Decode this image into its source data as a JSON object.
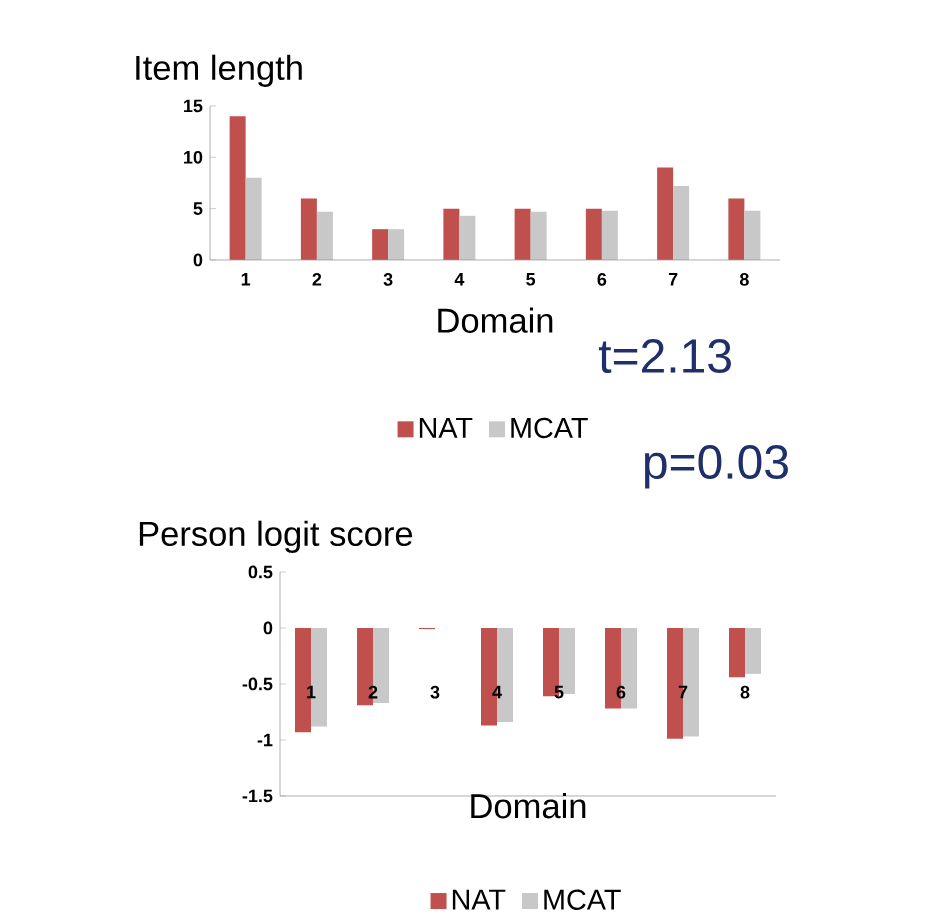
{
  "chart_data": [
    {
      "type": "bar",
      "title": "Item length",
      "xlabel": "Domain",
      "categories": [
        "1",
        "2",
        "3",
        "4",
        "5",
        "6",
        "7",
        "8"
      ],
      "series": [
        {
          "name": "NAT",
          "color": "#c0504d",
          "values": [
            14,
            6,
            3,
            5,
            5,
            5,
            9,
            6
          ]
        },
        {
          "name": "MCAT",
          "color": "#c8c8c8",
          "values": [
            8,
            4.7,
            3,
            4.3,
            4.7,
            4.8,
            7.2,
            4.8
          ]
        }
      ],
      "ylim": [
        0,
        15
      ],
      "yticks": [
        0,
        5,
        10,
        15
      ],
      "legend": "bottom",
      "grid": false,
      "annotations": [
        "t=2.13",
        "p=0.03"
      ]
    },
    {
      "type": "bar",
      "title": "Person logit score",
      "xlabel": "Domain",
      "categories": [
        "1",
        "2",
        "3",
        "4",
        "5",
        "6",
        "7",
        "8"
      ],
      "series": [
        {
          "name": "NAT",
          "color": "#c0504d",
          "values": [
            -0.93,
            -0.69,
            -0.01,
            -0.87,
            -0.61,
            -0.72,
            -0.99,
            -0.44
          ]
        },
        {
          "name": "MCAT",
          "color": "#c8c8c8",
          "values": [
            -0.88,
            -0.67,
            0,
            -0.84,
            -0.59,
            -0.72,
            -0.97,
            -0.41
          ]
        }
      ],
      "ylim": [
        -1.5,
        0.5
      ],
      "yticks": [
        -1.5,
        -1,
        -0.5,
        0,
        0.5
      ],
      "legend": "bottom",
      "grid": false
    }
  ]
}
